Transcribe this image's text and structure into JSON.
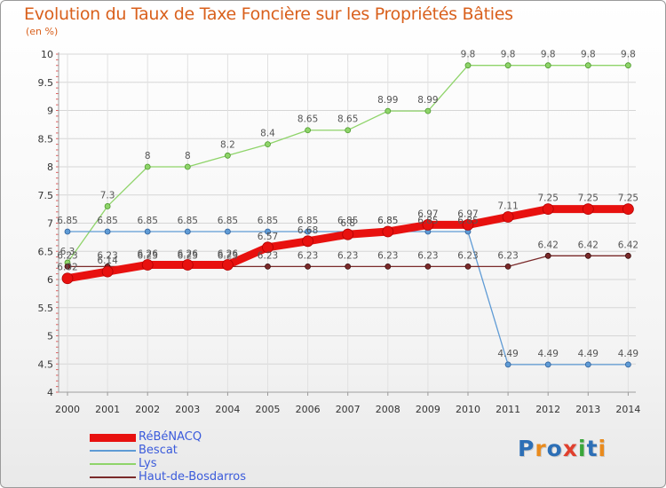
{
  "title": "Evolution du Taux de Taxe Foncière sur les Propriétés Bâties",
  "subtitle": "(en %)",
  "logo": {
    "letters": [
      "P",
      "r",
      "o",
      "x",
      "i",
      "t",
      "i"
    ],
    "colors": [
      "#2d6fb6",
      "#e98b1e",
      "#2d6fb6",
      "#e0402e",
      "#3aa63a",
      "#2d6fb6",
      "#e98b1e"
    ]
  },
  "chart_data": {
    "type": "line",
    "title": "Evolution du Taux de Taxe Foncière sur les Propriétés Bâties",
    "ylabel": "(en %)",
    "xlabel": "",
    "ylim": [
      4,
      10
    ],
    "yticks": [
      "4",
      "4.5",
      "5",
      "5.5",
      "6",
      "6.5",
      "7",
      "7.5",
      "8",
      "8.5",
      "9",
      "9.5",
      "10"
    ],
    "x": [
      "2000",
      "2001",
      "2002",
      "2003",
      "2004",
      "2005",
      "2006",
      "2007",
      "2008",
      "2009",
      "2010",
      "2011",
      "2012",
      "2013",
      "2014"
    ],
    "series": [
      {
        "name": "RéBéNACQ",
        "color": "#e8110f",
        "width": 9,
        "values": [
          6.02,
          6.14,
          6.26,
          6.26,
          6.26,
          6.57,
          6.68,
          6.8,
          6.85,
          6.97,
          6.97,
          7.11,
          7.25,
          7.25,
          7.25
        ],
        "labels": [
          "6.02",
          "6.14",
          "6.26",
          "6.26",
          "6.26",
          "6.57",
          "6.68",
          "6.8",
          "6.85",
          "6.97",
          "6.97",
          "7.11",
          "7.25",
          "7.25",
          "7.25"
        ]
      },
      {
        "name": "Bescat",
        "color": "#5f9bd5",
        "width": 1.3,
        "values": [
          6.85,
          6.85,
          6.85,
          6.85,
          6.85,
          6.85,
          6.85,
          6.85,
          6.85,
          6.85,
          6.85,
          4.49,
          4.49,
          4.49,
          4.49
        ],
        "labels": [
          "6.85",
          "6.85",
          "6.85",
          "6.85",
          "6.85",
          "6.85",
          "6.85",
          "6.85",
          "6.85",
          "6.85",
          "6.85",
          "4.49",
          "4.49",
          "4.49",
          "4.49"
        ]
      },
      {
        "name": "Lys",
        "color": "#8fd46a",
        "width": 1.3,
        "values": [
          6.3,
          7.3,
          8,
          8,
          8.2,
          8.4,
          8.65,
          8.65,
          8.99,
          8.99,
          9.8,
          9.8,
          9.8,
          9.8,
          9.8
        ],
        "labels": [
          "6.3",
          "7.3",
          "8",
          "8",
          "8.2",
          "8.4",
          "8.65",
          "8.65",
          "8.99",
          "8.99",
          "9.8",
          "9.8",
          "9.8",
          "9.8",
          "9.8"
        ]
      },
      {
        "name": "Haut-de-Bosdarros",
        "color": "#7a2a2a",
        "width": 1.3,
        "values": [
          6.23,
          6.23,
          6.23,
          6.23,
          6.23,
          6.23,
          6.23,
          6.23,
          6.23,
          6.23,
          6.23,
          6.23,
          6.42,
          6.42,
          6.42
        ],
        "labels": [
          "6.23",
          "6.23",
          "6.23",
          "6.23",
          "6.23",
          "6.23",
          "6.23",
          "6.23",
          "6.23",
          "6.23",
          "6.23",
          "6.23",
          "6.42",
          "6.42",
          "6.42"
        ]
      }
    ]
  }
}
